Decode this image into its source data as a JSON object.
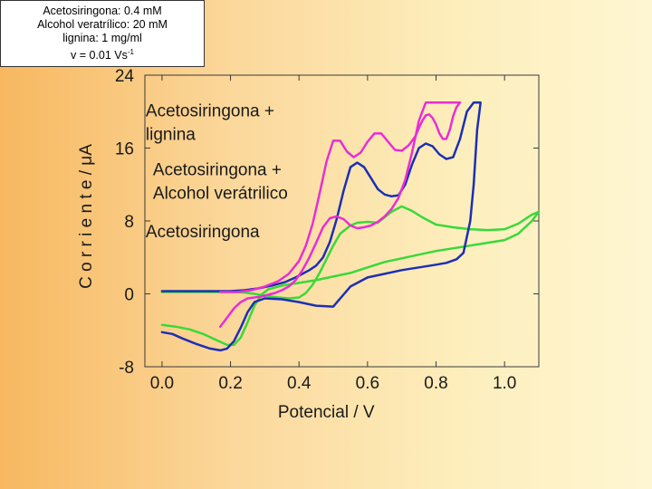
{
  "info_box": {
    "lines": [
      "Acetosiringona: 0.4 mM",
      "Alcohol veratrílico: 20 mM",
      "lignina: 1 mg/ml"
    ],
    "rate_line": "v = 0.01 Vs",
    "rate_unit_sup": "-1"
  },
  "chart_data": {
    "type": "line",
    "title": "",
    "xlabel": "Potencial / V",
    "ylabel": "C  o  r  r  i  e  n  t  e  /  μA",
    "xlim": [
      -0.05,
      1.1
    ],
    "ylim": [
      -8,
      24
    ],
    "x_ticks": [
      0.0,
      0.2,
      0.4,
      0.6,
      0.8,
      1.0
    ],
    "x_tick_labels": [
      "0.0",
      "0.2",
      "0.4",
      "0.6",
      "0.8",
      "1.0"
    ],
    "y_ticks": [
      -8,
      0,
      8,
      16,
      24
    ],
    "y_tick_labels": [
      "-8",
      "0",
      "8",
      "16",
      "24"
    ],
    "grid": false,
    "annotations": [
      {
        "lines": [
          "Acetosiringona +",
          "lignina"
        ],
        "x": -0.05,
        "y": 19.5
      },
      {
        "lines": [
          "Acetosiringona +",
          "Alcohol verátrilico"
        ],
        "x": -0.03,
        "y": 13.0
      },
      {
        "lines": [
          "Acetosiringona"
        ],
        "x": -0.04,
        "y": 6.2
      }
    ],
    "series": [
      {
        "color": "#39d939",
        "x": [
          0.0,
          0.04,
          0.08,
          0.12,
          0.16,
          0.19,
          0.21,
          0.23,
          0.25,
          0.27,
          0.29,
          0.31,
          0.35,
          0.4,
          0.45,
          0.5,
          0.55,
          0.6,
          0.65,
          0.7,
          0.75,
          0.8,
          0.85,
          0.9,
          0.95,
          1.0,
          1.04,
          1.08,
          1.1,
          1.08,
          1.04,
          1.0,
          0.95,
          0.9,
          0.85,
          0.8,
          0.76,
          0.73,
          0.7,
          0.67,
          0.63,
          0.6,
          0.57,
          0.55,
          0.52,
          0.5,
          0.48,
          0.46,
          0.44,
          0.42,
          0.4,
          0.37,
          0.34,
          0.3,
          0.27,
          0.25,
          0.22,
          0.2,
          0.18,
          0.15,
          0.1,
          0.05,
          0.0
        ],
        "y": [
          -3.4,
          -3.6,
          -3.9,
          -4.4,
          -5.1,
          -5.6,
          -5.6,
          -4.8,
          -3.1,
          -1.3,
          -0.1,
          0.5,
          0.9,
          1.2,
          1.5,
          1.9,
          2.3,
          2.9,
          3.5,
          3.9,
          4.3,
          4.7,
          5.0,
          5.3,
          5.6,
          5.9,
          6.6,
          8.0,
          9.0,
          8.7,
          7.7,
          7.1,
          7.0,
          7.1,
          7.3,
          7.6,
          8.4,
          9.1,
          9.6,
          9.0,
          7.8,
          7.9,
          7.8,
          7.5,
          6.6,
          5.3,
          3.8,
          2.3,
          1.0,
          0.1,
          -0.4,
          -0.5,
          -0.4,
          -0.2,
          0.0,
          0.1,
          0.2,
          0.2,
          0.2,
          0.2,
          0.2,
          0.2,
          0.2
        ]
      },
      {
        "color": "#1c2fb4",
        "x": [
          0.0,
          0.03,
          0.06,
          0.1,
          0.14,
          0.17,
          0.19,
          0.21,
          0.23,
          0.25,
          0.27,
          0.3,
          0.35,
          0.4,
          0.45,
          0.5,
          0.55,
          0.6,
          0.65,
          0.7,
          0.75,
          0.8,
          0.83,
          0.86,
          0.88,
          0.9,
          0.91,
          0.92,
          0.93,
          0.91,
          0.89,
          0.87,
          0.85,
          0.83,
          0.81,
          0.79,
          0.77,
          0.75,
          0.73,
          0.71,
          0.69,
          0.67,
          0.65,
          0.63,
          0.61,
          0.59,
          0.57,
          0.55,
          0.53,
          0.51,
          0.49,
          0.47,
          0.45,
          0.43,
          0.41,
          0.39,
          0.36,
          0.32,
          0.28,
          0.24,
          0.2,
          0.15,
          0.1,
          0.05,
          0.0
        ],
        "y": [
          -4.2,
          -4.4,
          -4.9,
          -5.5,
          -6.0,
          -6.2,
          -6.0,
          -5.2,
          -3.7,
          -2.0,
          -0.9,
          -0.5,
          -0.6,
          -0.9,
          -1.3,
          -1.4,
          0.8,
          1.8,
          2.2,
          2.6,
          2.9,
          3.2,
          3.4,
          3.8,
          4.5,
          8.0,
          12.0,
          18.0,
          21.0,
          21.0,
          20.0,
          17.0,
          15.0,
          14.8,
          15.3,
          16.2,
          16.5,
          16.0,
          14.2,
          12.0,
          10.8,
          10.7,
          10.9,
          11.5,
          12.7,
          13.9,
          14.4,
          13.9,
          11.3,
          8.2,
          5.7,
          4.0,
          3.1,
          2.6,
          2.2,
          1.8,
          1.3,
          0.9,
          0.6,
          0.4,
          0.3,
          0.3,
          0.3,
          0.3,
          0.3
        ]
      },
      {
        "color": "#e82ed4",
        "x": [
          0.17,
          0.19,
          0.21,
          0.23,
          0.25,
          0.27,
          0.29,
          0.31,
          0.33,
          0.35,
          0.37,
          0.39,
          0.41,
          0.43,
          0.45,
          0.47,
          0.49,
          0.51,
          0.53,
          0.55,
          0.57,
          0.59,
          0.61,
          0.63,
          0.65,
          0.67,
          0.69,
          0.71,
          0.73,
          0.75,
          0.77,
          0.79,
          0.81,
          0.83,
          0.85,
          0.87,
          0.87,
          0.86,
          0.85,
          0.84,
          0.83,
          0.82,
          0.81,
          0.8,
          0.79,
          0.78,
          0.77,
          0.76,
          0.75,
          0.74,
          0.72,
          0.7,
          0.68,
          0.66,
          0.64,
          0.62,
          0.6,
          0.58,
          0.56,
          0.54,
          0.52,
          0.5,
          0.48,
          0.46,
          0.44,
          0.42,
          0.4,
          0.37,
          0.34,
          0.3,
          0.26,
          0.22,
          0.19,
          0.17
        ],
        "y": [
          -3.6,
          -2.6,
          -1.6,
          -0.9,
          -0.5,
          -0.4,
          -0.3,
          -0.1,
          0.1,
          0.4,
          0.8,
          1.5,
          2.6,
          4.0,
          5.6,
          7.3,
          8.3,
          8.5,
          8.2,
          7.5,
          7.2,
          7.3,
          7.5,
          7.9,
          8.5,
          9.3,
          10.5,
          12.5,
          15.5,
          19.0,
          21.0,
          21.0,
          21.0,
          21.0,
          21.0,
          21.0,
          21.0,
          20.5,
          19.5,
          18.0,
          17.0,
          17.0,
          17.6,
          18.6,
          19.3,
          19.7,
          19.6,
          19.0,
          18.2,
          17.3,
          16.3,
          15.7,
          15.8,
          16.7,
          17.6,
          17.6,
          16.7,
          15.5,
          15.0,
          15.6,
          16.8,
          16.8,
          14.5,
          11.0,
          7.7,
          5.3,
          3.6,
          2.2,
          1.4,
          0.8,
          0.4,
          0.2,
          0.2,
          0.2
        ]
      }
    ]
  }
}
